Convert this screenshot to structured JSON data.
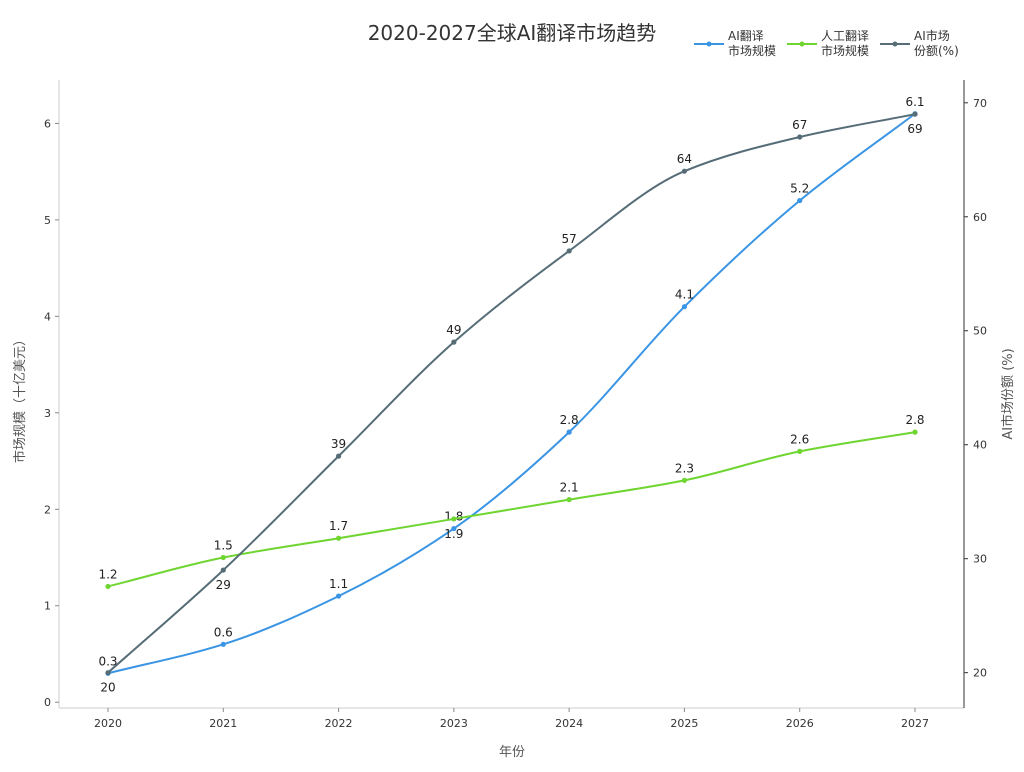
{
  "chart_data": {
    "type": "line",
    "title": "2020-2027全球AI翻译市场趋势",
    "xlabel": "年份",
    "ylabel": "市场规模（十亿美元）",
    "ylabel_right": "AI市场份额 (%)",
    "categories": [
      "2020",
      "2021",
      "2022",
      "2023",
      "2024",
      "2025",
      "2026",
      "2027"
    ],
    "ylim": [
      -0.06,
      6.45
    ],
    "yticks": [
      0,
      1,
      2,
      3,
      4,
      5,
      6
    ],
    "ylim_right": [
      16.9,
      72
    ],
    "yticks_right": [
      20,
      30,
      40,
      50,
      60,
      70
    ],
    "grid": false,
    "legend_position": "top-right",
    "series": [
      {
        "name": "AI翻译\n市场规模",
        "axis": "left",
        "color": "#3a95e4",
        "values": [
          0.3,
          0.6,
          1.1,
          1.8,
          2.8,
          4.1,
          5.2,
          6.1
        ]
      },
      {
        "name": "人工翻译\n市场规模",
        "axis": "left",
        "color": "#6fd530",
        "values": [
          1.2,
          1.5,
          1.7,
          1.9,
          2.1,
          2.3,
          2.6,
          2.8
        ]
      },
      {
        "name": "AI市场\n份额(%)",
        "axis": "right",
        "color": "#566d78",
        "values": [
          20,
          29,
          39,
          49,
          57,
          64,
          67,
          69
        ]
      }
    ]
  }
}
